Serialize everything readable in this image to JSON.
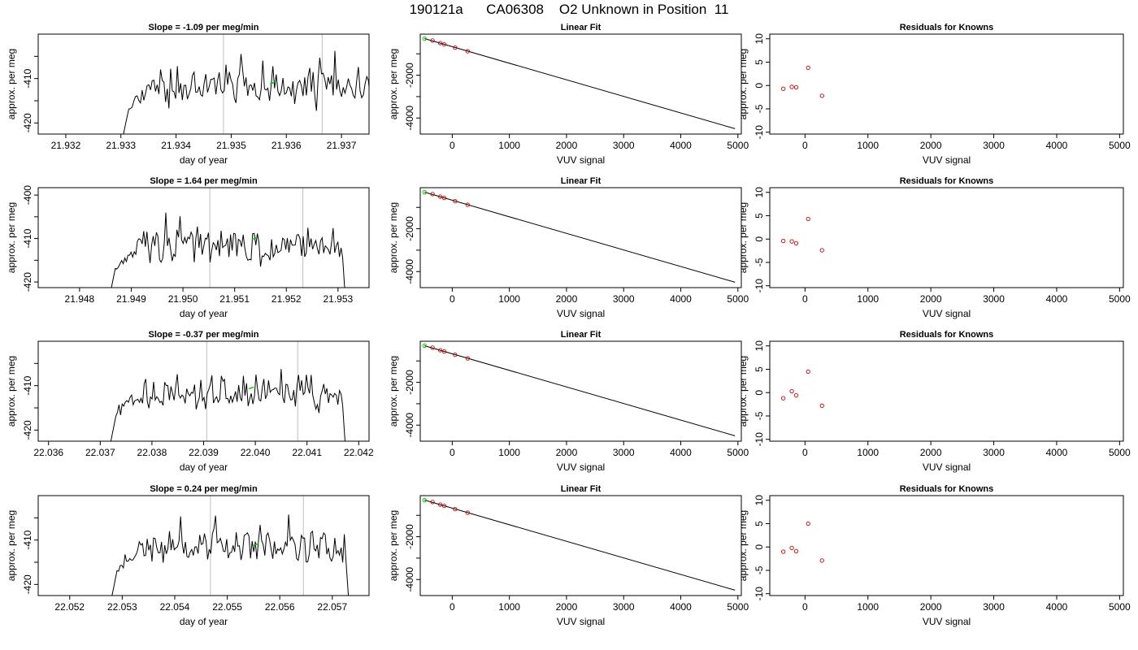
{
  "page": {
    "title": "190121a      CA06308    O2 Unknown in Position  11"
  },
  "colors": {
    "trace": "#000000",
    "vline": "#bebebe",
    "green": "#00cc00",
    "red": "#cc0000",
    "frame": "#000000"
  },
  "chart_data": [
    {
      "type": "line",
      "row": 0,
      "col": 0,
      "title": "Slope =  -1.09  per meg/min",
      "xlabel": "day of year",
      "ylabel": "approx. per meg",
      "xlim": [
        21.9315,
        21.9375
      ],
      "ylim": [
        -422.5,
        -400
      ],
      "xticks": [
        {
          "v": 21.932,
          "label": "21.932"
        },
        {
          "v": 21.933,
          "label": "21.933"
        },
        {
          "v": 21.934,
          "label": "21.934"
        },
        {
          "v": 21.935,
          "label": "21.935"
        },
        {
          "v": 21.936,
          "label": "21.936"
        },
        {
          "v": 21.937,
          "label": "21.937"
        }
      ],
      "yticks": [
        {
          "v": -410,
          "label": "-410"
        },
        {
          "v": -420,
          "label": "-420"
        }
      ],
      "yminor": [
        -405,
        -415
      ],
      "vlines": [
        21.93486,
        21.93665
      ],
      "trace_start": 21.93302,
      "trace_end": 21.93758,
      "seed": 11,
      "green_point": {
        "x": 21.93575,
        "y": -411
      },
      "series_note": "noisy per-meg trace"
    },
    {
      "type": "line",
      "row": 0,
      "col": 1,
      "title": "Linear Fit",
      "xlabel": "VUV signal",
      "ylabel": "approx. per meg",
      "xlim": [
        -560,
        5060
      ],
      "ylim": [
        -4750,
        -80
      ],
      "xticks": [
        {
          "v": 0,
          "label": "0"
        },
        {
          "v": 1000,
          "label": "1000"
        },
        {
          "v": 2000,
          "label": "2000"
        },
        {
          "v": 3000,
          "label": "3000"
        },
        {
          "v": 4000,
          "label": "4000"
        },
        {
          "v": 5000,
          "label": "5000"
        }
      ],
      "yticks": [
        {
          "v": -2000,
          "label": "-2000"
        },
        {
          "v": -4000,
          "label": "-4000"
        }
      ],
      "yminor": [
        -1000,
        -3000
      ],
      "line": {
        "x": [
          -485,
          4950
        ],
        "y": [
          -290,
          -4500
        ]
      },
      "points_red": [
        {
          "x": -345,
          "y": -380
        },
        {
          "x": -210,
          "y": -500
        },
        {
          "x": -140,
          "y": -560
        },
        {
          "x": 50,
          "y": -710
        },
        {
          "x": 270,
          "y": -880
        }
      ],
      "points_green": [
        {
          "x": -485,
          "y": -290
        }
      ]
    },
    {
      "type": "scatter",
      "row": 0,
      "col": 2,
      "title": "Residuals for Knowns",
      "xlabel": "VUV signal",
      "ylabel": "approx. per meg",
      "xlim": [
        -560,
        5060
      ],
      "ylim": [
        -10.4,
        11
      ],
      "xticks": [
        {
          "v": 0,
          "label": "0"
        },
        {
          "v": 1000,
          "label": "1000"
        },
        {
          "v": 2000,
          "label": "2000"
        },
        {
          "v": 3000,
          "label": "3000"
        },
        {
          "v": 4000,
          "label": "4000"
        },
        {
          "v": 5000,
          "label": "5000"
        }
      ],
      "yticks": [
        {
          "v": -10,
          "label": "-10"
        },
        {
          "v": -5,
          "label": "-5"
        },
        {
          "v": 0,
          "label": "0"
        },
        {
          "v": 5,
          "label": "5"
        },
        {
          "v": 10,
          "label": "10"
        }
      ],
      "points_red": [
        {
          "x": -345,
          "y": -0.7
        },
        {
          "x": -210,
          "y": -0.3
        },
        {
          "x": -140,
          "y": -0.4
        },
        {
          "x": 50,
          "y": 3.8
        },
        {
          "x": 270,
          "y": -2.2
        }
      ]
    },
    {
      "type": "line",
      "row": 1,
      "col": 0,
      "title": "Slope =  1.64  per meg/min",
      "xlabel": "day of year",
      "ylabel": "approx. per meg",
      "xlim": [
        21.9472,
        21.9536
      ],
      "ylim": [
        -421.3,
        -398.3
      ],
      "xticks": [
        {
          "v": 21.948,
          "label": "21.948"
        },
        {
          "v": 21.949,
          "label": "21.949"
        },
        {
          "v": 21.95,
          "label": "21.950"
        },
        {
          "v": 21.951,
          "label": "21.951"
        },
        {
          "v": 21.952,
          "label": "21.952"
        },
        {
          "v": 21.953,
          "label": "21.953"
        }
      ],
      "yticks": [
        {
          "v": -400,
          "label": "-400"
        },
        {
          "v": -410,
          "label": "-410"
        },
        {
          "v": -420,
          "label": "-420"
        }
      ],
      "yminor": [
        -405,
        -415
      ],
      "vlines": [
        21.95052,
        21.95232
      ],
      "trace_start": 21.94857,
      "trace_end": 21.95315,
      "seed": 23,
      "green_point": {
        "x": 21.95138,
        "y": -410
      }
    },
    {
      "type": "line",
      "row": 1,
      "col": 1,
      "title": "Linear Fit",
      "xlabel": "VUV signal",
      "ylabel": "approx. per meg",
      "xlim": [
        -560,
        5060
      ],
      "ylim": [
        -4750,
        -80
      ],
      "xticks": [
        {
          "v": 0,
          "label": "0"
        },
        {
          "v": 1000,
          "label": "1000"
        },
        {
          "v": 2000,
          "label": "2000"
        },
        {
          "v": 3000,
          "label": "3000"
        },
        {
          "v": 4000,
          "label": "4000"
        },
        {
          "v": 5000,
          "label": "5000"
        }
      ],
      "yticks": [
        {
          "v": -2000,
          "label": "-2000"
        },
        {
          "v": -4000,
          "label": "-4000"
        }
      ],
      "yminor": [
        -1000,
        -3000
      ],
      "line": {
        "x": [
          -485,
          4950
        ],
        "y": [
          -290,
          -4500
        ]
      },
      "points_red": [
        {
          "x": -345,
          "y": -380
        },
        {
          "x": -210,
          "y": -500
        },
        {
          "x": -140,
          "y": -560
        },
        {
          "x": 50,
          "y": -710
        },
        {
          "x": 270,
          "y": -880
        }
      ],
      "points_green": [
        {
          "x": -485,
          "y": -290
        }
      ]
    },
    {
      "type": "scatter",
      "row": 1,
      "col": 2,
      "title": "Residuals for Knowns",
      "xlabel": "VUV signal",
      "ylabel": "approx. per meg",
      "xlim": [
        -560,
        5060
      ],
      "ylim": [
        -10.4,
        11
      ],
      "xticks": [
        {
          "v": 0,
          "label": "0"
        },
        {
          "v": 1000,
          "label": "1000"
        },
        {
          "v": 2000,
          "label": "2000"
        },
        {
          "v": 3000,
          "label": "3000"
        },
        {
          "v": 4000,
          "label": "4000"
        },
        {
          "v": 5000,
          "label": "5000"
        }
      ],
      "yticks": [
        {
          "v": -10,
          "label": "-10"
        },
        {
          "v": -5,
          "label": "-5"
        },
        {
          "v": 0,
          "label": "0"
        },
        {
          "v": 5,
          "label": "5"
        },
        {
          "v": 10,
          "label": "10"
        }
      ],
      "points_red": [
        {
          "x": -345,
          "y": -0.4
        },
        {
          "x": -210,
          "y": -0.5
        },
        {
          "x": -140,
          "y": -0.9
        },
        {
          "x": 50,
          "y": 4.3
        },
        {
          "x": 270,
          "y": -2.4
        }
      ]
    },
    {
      "type": "line",
      "row": 2,
      "col": 0,
      "title": "Slope =  -0.37  per meg/min",
      "xlabel": "day of year",
      "ylabel": "approx. per meg",
      "xlim": [
        22.0358,
        22.0422
      ],
      "ylim": [
        -422.5,
        -400
      ],
      "xticks": [
        {
          "v": 22.036,
          "label": "22.036"
        },
        {
          "v": 22.037,
          "label": "22.037"
        },
        {
          "v": 22.038,
          "label": "22.038"
        },
        {
          "v": 22.039,
          "label": "22.039"
        },
        {
          "v": 22.04,
          "label": "22.040"
        },
        {
          "v": 22.041,
          "label": "22.041"
        },
        {
          "v": 22.042,
          "label": "22.042"
        }
      ],
      "yticks": [
        {
          "v": -410,
          "label": "-410"
        },
        {
          "v": -420,
          "label": "-420"
        }
      ],
      "yminor": [
        -405,
        -415
      ],
      "vlines": [
        22.03906,
        22.04082
      ],
      "trace_start": 22.03718,
      "trace_end": 22.04175,
      "seed": 37,
      "green_point": {
        "x": 22.03992,
        "y": -410.5
      }
    },
    {
      "type": "line",
      "row": 2,
      "col": 1,
      "title": "Linear Fit",
      "xlabel": "VUV signal",
      "ylabel": "approx. per meg",
      "xlim": [
        -560,
        5060
      ],
      "ylim": [
        -4750,
        -80
      ],
      "xticks": [
        {
          "v": 0,
          "label": "0"
        },
        {
          "v": 1000,
          "label": "1000"
        },
        {
          "v": 2000,
          "label": "2000"
        },
        {
          "v": 3000,
          "label": "3000"
        },
        {
          "v": 4000,
          "label": "4000"
        },
        {
          "v": 5000,
          "label": "5000"
        }
      ],
      "yticks": [
        {
          "v": -2000,
          "label": "-2000"
        },
        {
          "v": -4000,
          "label": "-4000"
        }
      ],
      "yminor": [
        -1000,
        -3000
      ],
      "line": {
        "x": [
          -485,
          4950
        ],
        "y": [
          -290,
          -4500
        ]
      },
      "points_red": [
        {
          "x": -345,
          "y": -380
        },
        {
          "x": -210,
          "y": -500
        },
        {
          "x": -140,
          "y": -560
        },
        {
          "x": 50,
          "y": -710
        },
        {
          "x": 270,
          "y": -880
        }
      ],
      "points_green": [
        {
          "x": -485,
          "y": -290
        }
      ]
    },
    {
      "type": "scatter",
      "row": 2,
      "col": 2,
      "title": "Residuals for Knowns",
      "xlabel": "VUV signal",
      "ylabel": "approx. per meg",
      "xlim": [
        -560,
        5060
      ],
      "ylim": [
        -10.4,
        11
      ],
      "xticks": [
        {
          "v": 0,
          "label": "0"
        },
        {
          "v": 1000,
          "label": "1000"
        },
        {
          "v": 2000,
          "label": "2000"
        },
        {
          "v": 3000,
          "label": "3000"
        },
        {
          "v": 4000,
          "label": "4000"
        },
        {
          "v": 5000,
          "label": "5000"
        }
      ],
      "yticks": [
        {
          "v": -10,
          "label": "-10"
        },
        {
          "v": -5,
          "label": "-5"
        },
        {
          "v": 0,
          "label": "0"
        },
        {
          "v": 5,
          "label": "5"
        },
        {
          "v": 10,
          "label": "10"
        }
      ],
      "points_red": [
        {
          "x": -345,
          "y": -1.2
        },
        {
          "x": -210,
          "y": 0.3
        },
        {
          "x": -140,
          "y": -0.6
        },
        {
          "x": 50,
          "y": 4.5
        },
        {
          "x": 270,
          "y": -2.8
        }
      ]
    },
    {
      "type": "line",
      "row": 3,
      "col": 0,
      "title": "Slope =  0.24  per meg/min",
      "xlabel": "day of year",
      "ylabel": "approx. per meg",
      "xlim": [
        22.0514,
        22.0577
      ],
      "ylim": [
        -422.5,
        -400
      ],
      "xticks": [
        {
          "v": 22.052,
          "label": "22.052"
        },
        {
          "v": 22.053,
          "label": "22.053"
        },
        {
          "v": 22.054,
          "label": "22.054"
        },
        {
          "v": 22.055,
          "label": "22.055"
        },
        {
          "v": 22.056,
          "label": "22.056"
        },
        {
          "v": 22.057,
          "label": "22.057"
        }
      ],
      "yticks": [
        {
          "v": -410,
          "label": "-410"
        },
        {
          "v": -420,
          "label": "-420"
        }
      ],
      "yminor": [
        -405,
        -415
      ],
      "vlines": [
        22.05468,
        22.05645
      ],
      "trace_start": 22.05278,
      "trace_end": 22.05732,
      "seed": 53,
      "green_point": {
        "x": 22.05555,
        "y": -411
      }
    },
    {
      "type": "line",
      "row": 3,
      "col": 1,
      "title": "Linear Fit",
      "xlabel": "VUV signal",
      "ylabel": "approx. per meg",
      "xlim": [
        -560,
        5060
      ],
      "ylim": [
        -4750,
        -80
      ],
      "xticks": [
        {
          "v": 0,
          "label": "0"
        },
        {
          "v": 1000,
          "label": "1000"
        },
        {
          "v": 2000,
          "label": "2000"
        },
        {
          "v": 3000,
          "label": "3000"
        },
        {
          "v": 4000,
          "label": "4000"
        },
        {
          "v": 5000,
          "label": "5000"
        }
      ],
      "yticks": [
        {
          "v": -2000,
          "label": "-2000"
        },
        {
          "v": -4000,
          "label": "-4000"
        }
      ],
      "yminor": [
        -1000,
        -3000
      ],
      "line": {
        "x": [
          -485,
          4950
        ],
        "y": [
          -290,
          -4500
        ]
      },
      "points_red": [
        {
          "x": -345,
          "y": -380
        },
        {
          "x": -210,
          "y": -500
        },
        {
          "x": -140,
          "y": -560
        },
        {
          "x": 50,
          "y": -710
        },
        {
          "x": 270,
          "y": -880
        }
      ],
      "points_green": [
        {
          "x": -485,
          "y": -290
        }
      ]
    },
    {
      "type": "scatter",
      "row": 3,
      "col": 2,
      "title": "Residuals for Knowns",
      "xlabel": "VUV signal",
      "ylabel": "approx. per meg",
      "xlim": [
        -560,
        5060
      ],
      "ylim": [
        -10.4,
        11
      ],
      "xticks": [
        {
          "v": 0,
          "label": "0"
        },
        {
          "v": 1000,
          "label": "1000"
        },
        {
          "v": 2000,
          "label": "2000"
        },
        {
          "v": 3000,
          "label": "3000"
        },
        {
          "v": 4000,
          "label": "4000"
        },
        {
          "v": 5000,
          "label": "5000"
        }
      ],
      "yticks": [
        {
          "v": -10,
          "label": "-10"
        },
        {
          "v": -5,
          "label": "-5"
        },
        {
          "v": 0,
          "label": "0"
        },
        {
          "v": 5,
          "label": "5"
        },
        {
          "v": 10,
          "label": "10"
        }
      ],
      "points_red": [
        {
          "x": -345,
          "y": -1.0
        },
        {
          "x": -210,
          "y": -0.2
        },
        {
          "x": -140,
          "y": -0.9
        },
        {
          "x": 50,
          "y": 5.0
        },
        {
          "x": 270,
          "y": -2.9
        }
      ]
    }
  ]
}
